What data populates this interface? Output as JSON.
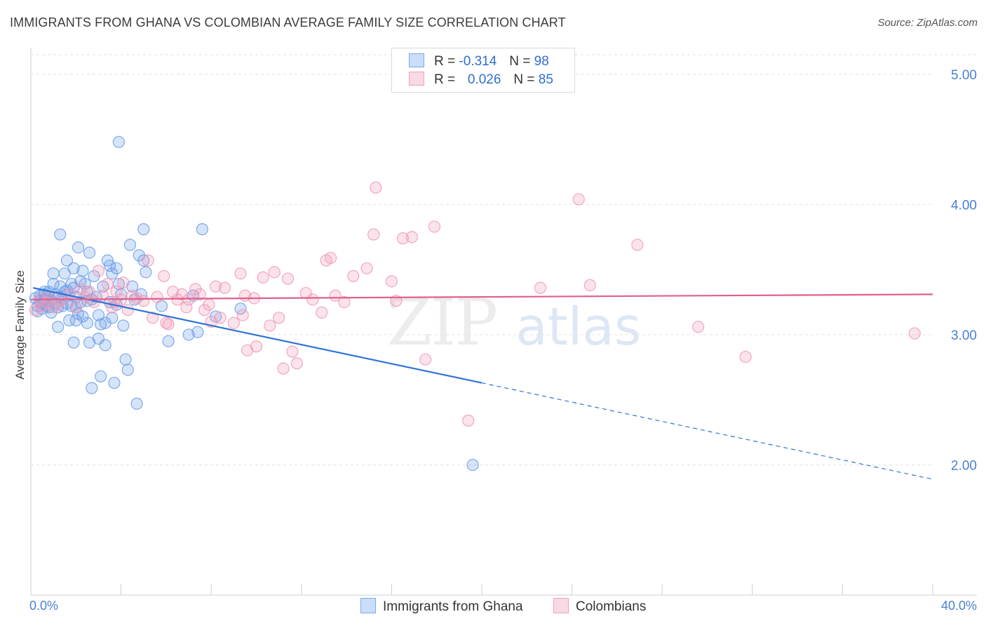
{
  "title": "IMMIGRANTS FROM GHANA VS COLOMBIAN AVERAGE FAMILY SIZE CORRELATION CHART",
  "source": "Source: ZipAtlas.com",
  "watermark": {
    "zip": "ZIP",
    "atlas": "atlas"
  },
  "legend": {
    "rows": [
      {
        "r_label": "R =",
        "r_value": "-0.314",
        "n_label": "N =",
        "n_value": "98",
        "color": "#7aaaf0"
      },
      {
        "r_label": "R =",
        "r_value": "0.026",
        "n_label": "N =",
        "n_value": "85",
        "color": "#f0a0bc"
      }
    ]
  },
  "bottom_legend": {
    "items": [
      {
        "label": "Immigrants from Ghana",
        "color": "#7aaaf0"
      },
      {
        "label": "Colombians",
        "color": "#f0a0bc"
      }
    ]
  },
  "chart_data": {
    "type": "scatter",
    "ylabel": "Average Family Size",
    "xlim": [
      0,
      40
    ],
    "ylim": [
      1.0,
      5.15
    ],
    "x_tick_labels": [
      "0.0%",
      "40.0%"
    ],
    "y_ticks": [
      {
        "value": 5.0,
        "label": "5.00"
      },
      {
        "value": 4.0,
        "label": "4.00"
      },
      {
        "value": 3.0,
        "label": "3.00"
      },
      {
        "value": 2.0,
        "label": "2.00"
      }
    ],
    "grid": true,
    "series": [
      {
        "name": "Immigrants from Ghana",
        "color": "#6a9ee8",
        "trend": {
          "x0": 0.1,
          "y0": 3.36,
          "x1": 20,
          "y1": 2.63,
          "dash_to_x": 40,
          "dash_to_y": 1.89,
          "color": "#2f74d6"
        },
        "points": [
          [
            0.2,
            3.28
          ],
          [
            0.3,
            3.22
          ],
          [
            0.3,
            3.18
          ],
          [
            0.4,
            3.3
          ],
          [
            0.4,
            3.26
          ],
          [
            0.5,
            3.24
          ],
          [
            0.5,
            3.2
          ],
          [
            0.6,
            3.31
          ],
          [
            0.6,
            3.27
          ],
          [
            0.7,
            3.25
          ],
          [
            0.7,
            3.22
          ],
          [
            0.8,
            3.33
          ],
          [
            0.8,
            3.29
          ],
          [
            0.9,
            3.17
          ],
          [
            0.9,
            3.26
          ],
          [
            1.0,
            3.47
          ],
          [
            1.0,
            3.39
          ],
          [
            1.1,
            3.31
          ],
          [
            1.1,
            3.24
          ],
          [
            1.2,
            3.06
          ],
          [
            1.2,
            3.29
          ],
          [
            1.3,
            3.77
          ],
          [
            1.3,
            3.37
          ],
          [
            1.4,
            3.22
          ],
          [
            1.4,
            3.28
          ],
          [
            1.5,
            3.47
          ],
          [
            1.5,
            3.33
          ],
          [
            1.6,
            3.57
          ],
          [
            1.6,
            3.24
          ],
          [
            1.7,
            3.11
          ],
          [
            1.7,
            3.31
          ],
          [
            1.8,
            3.39
          ],
          [
            1.8,
            3.22
          ],
          [
            1.9,
            3.51
          ],
          [
            1.9,
            2.94
          ],
          [
            2.0,
            3.11
          ],
          [
            2.0,
            3.29
          ],
          [
            2.1,
            3.67
          ],
          [
            2.1,
            3.16
          ],
          [
            2.2,
            3.41
          ],
          [
            2.2,
            3.25
          ],
          [
            2.3,
            3.49
          ],
          [
            2.3,
            3.14
          ],
          [
            2.4,
            3.39
          ],
          [
            2.5,
            3.09
          ],
          [
            2.5,
            3.33
          ],
          [
            2.6,
            2.94
          ],
          [
            2.6,
            3.63
          ],
          [
            2.7,
            3.27
          ],
          [
            2.7,
            2.59
          ],
          [
            2.8,
            3.45
          ],
          [
            2.9,
            3.29
          ],
          [
            3.0,
            3.15
          ],
          [
            3.0,
            2.97
          ],
          [
            3.1,
            3.08
          ],
          [
            3.1,
            2.68
          ],
          [
            3.2,
            3.37
          ],
          [
            3.3,
            3.09
          ],
          [
            3.3,
            2.92
          ],
          [
            3.4,
            3.57
          ],
          [
            3.5,
            3.53
          ],
          [
            3.5,
            3.25
          ],
          [
            3.6,
            3.13
          ],
          [
            3.6,
            3.47
          ],
          [
            3.7,
            2.63
          ],
          [
            3.8,
            3.51
          ],
          [
            3.9,
            4.48
          ],
          [
            3.9,
            3.39
          ],
          [
            4.0,
            3.31
          ],
          [
            4.1,
            3.07
          ],
          [
            4.2,
            2.81
          ],
          [
            4.3,
            2.73
          ],
          [
            4.4,
            3.69
          ],
          [
            4.5,
            3.37
          ],
          [
            4.6,
            3.27
          ],
          [
            4.7,
            2.47
          ],
          [
            4.8,
            3.61
          ],
          [
            4.9,
            3.31
          ],
          [
            5.0,
            3.57
          ],
          [
            5.0,
            3.81
          ],
          [
            5.1,
            3.48
          ],
          [
            5.8,
            3.22
          ],
          [
            6.1,
            2.95
          ],
          [
            7.0,
            3.0
          ],
          [
            7.2,
            3.3
          ],
          [
            7.4,
            3.02
          ],
          [
            7.6,
            3.81
          ],
          [
            8.2,
            3.14
          ],
          [
            9.3,
            3.2
          ],
          [
            19.6,
            2.0
          ],
          [
            1.2,
            3.21
          ],
          [
            0.6,
            3.33
          ],
          [
            2.5,
            3.26
          ],
          [
            1.9,
            3.36
          ],
          [
            3.8,
            3.23
          ],
          [
            0.8,
            3.21
          ],
          [
            2.0,
            3.21
          ],
          [
            1.6,
            3.34
          ]
        ]
      },
      {
        "name": "Colombians",
        "color": "#f099b6",
        "trend": {
          "x0": 0,
          "y0": 3.27,
          "x1": 40,
          "y1": 3.31,
          "color": "#e0608c"
        },
        "points": [
          [
            0.2,
            3.19
          ],
          [
            0.4,
            3.27
          ],
          [
            0.5,
            3.22
          ],
          [
            0.7,
            3.25
          ],
          [
            0.8,
            3.29
          ],
          [
            1.0,
            3.21
          ],
          [
            1.2,
            3.23
          ],
          [
            1.4,
            3.27
          ],
          [
            1.7,
            3.31
          ],
          [
            2.0,
            3.21
          ],
          [
            2.2,
            3.35
          ],
          [
            2.4,
            3.29
          ],
          [
            2.6,
            3.33
          ],
          [
            2.8,
            3.25
          ],
          [
            3.0,
            3.49
          ],
          [
            3.2,
            3.3
          ],
          [
            3.4,
            3.39
          ],
          [
            3.6,
            3.21
          ],
          [
            3.8,
            3.33
          ],
          [
            4.0,
            3.27
          ],
          [
            4.1,
            3.4
          ],
          [
            4.3,
            3.19
          ],
          [
            4.5,
            3.3
          ],
          [
            4.7,
            3.28
          ],
          [
            5.0,
            3.26
          ],
          [
            5.2,
            3.57
          ],
          [
            5.4,
            3.13
          ],
          [
            5.6,
            3.29
          ],
          [
            5.9,
            3.45
          ],
          [
            6.0,
            3.09
          ],
          [
            6.3,
            3.33
          ],
          [
            6.5,
            3.27
          ],
          [
            6.7,
            3.31
          ],
          [
            6.9,
            3.21
          ],
          [
            7.0,
            3.27
          ],
          [
            7.3,
            3.35
          ],
          [
            7.5,
            3.31
          ],
          [
            7.7,
            3.19
          ],
          [
            7.9,
            3.23
          ],
          [
            8.0,
            3.1
          ],
          [
            8.2,
            3.37
          ],
          [
            8.4,
            3.13
          ],
          [
            8.6,
            3.36
          ],
          [
            9.0,
            3.09
          ],
          [
            9.3,
            3.47
          ],
          [
            9.4,
            3.15
          ],
          [
            9.5,
            3.3
          ],
          [
            9.6,
            2.88
          ],
          [
            9.9,
            3.28
          ],
          [
            10.0,
            2.91
          ],
          [
            10.3,
            3.44
          ],
          [
            10.6,
            3.07
          ],
          [
            10.8,
            3.48
          ],
          [
            11.0,
            3.13
          ],
          [
            11.2,
            2.74
          ],
          [
            11.4,
            3.43
          ],
          [
            11.6,
            2.87
          ],
          [
            11.8,
            2.78
          ],
          [
            12.2,
            3.32
          ],
          [
            12.5,
            3.27
          ],
          [
            12.9,
            3.17
          ],
          [
            13.1,
            3.57
          ],
          [
            13.3,
            3.59
          ],
          [
            13.5,
            3.3
          ],
          [
            13.9,
            3.25
          ],
          [
            14.3,
            3.45
          ],
          [
            14.9,
            3.51
          ],
          [
            15.2,
            3.77
          ],
          [
            15.3,
            4.13
          ],
          [
            16.0,
            3.41
          ],
          [
            16.2,
            3.26
          ],
          [
            16.5,
            3.74
          ],
          [
            16.9,
            3.75
          ],
          [
            17.5,
            2.81
          ],
          [
            17.9,
            3.83
          ],
          [
            19.4,
            2.34
          ],
          [
            22.6,
            3.36
          ],
          [
            24.3,
            4.04
          ],
          [
            24.8,
            3.38
          ],
          [
            26.9,
            3.69
          ],
          [
            29.6,
            3.06
          ],
          [
            31.7,
            2.83
          ],
          [
            39.2,
            3.01
          ],
          [
            6.1,
            3.08
          ],
          [
            3.7,
            3.25
          ]
        ]
      }
    ]
  }
}
